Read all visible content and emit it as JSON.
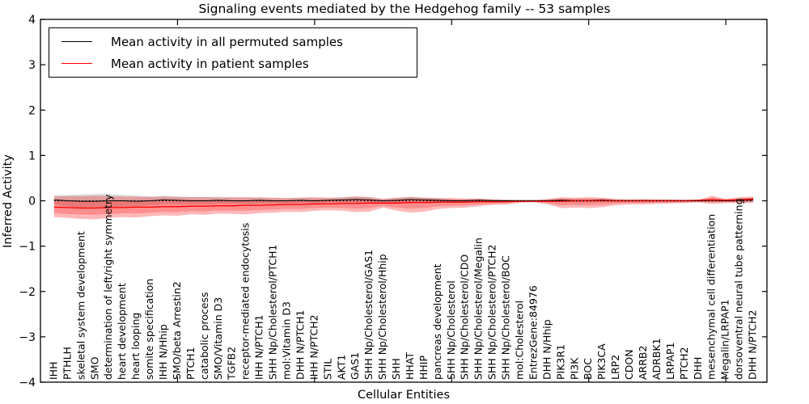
{
  "title": "Signaling events mediated by the Hedgehog family -- 53 samples",
  "legend": {
    "items": [
      {
        "label": "Mean activity in all permuted samples",
        "color": "#000000"
      },
      {
        "label": "Mean activity in patient samples",
        "color": "#ff0000"
      }
    ]
  },
  "colors": {
    "permuted_line": "#000000",
    "patient_line": "#ff0000",
    "permuted_band": "rgba(0,0,0,0.15)",
    "patient_band_outer": "rgba(255,0,0,0.28)",
    "patient_band_inner": "rgba(255,0,0,0.22)"
  },
  "chart_data": {
    "type": "line",
    "title": "Signaling events mediated by the Hedgehog family -- 53 samples",
    "xlabel": "Cellular Entities",
    "ylabel": "Inferred Activity",
    "ylim": [
      -4,
      4
    ],
    "yticks": [
      -4,
      -3,
      -2,
      -1,
      0,
      1,
      2,
      3,
      4
    ],
    "xlim": [
      0,
      53
    ],
    "xticks_numeric": [
      10,
      20,
      30,
      40,
      50
    ],
    "grid": false,
    "legend_position": "upper left",
    "zero_line": {
      "style": "dotted",
      "color": "#000000",
      "y": 0
    },
    "categories": [
      "IHH",
      "PTHLH",
      "skeletal system development",
      "SMO",
      "determination of left/right symmetry",
      "heart development",
      "heart looping",
      "somite specification",
      "IHH N/Hhip",
      "SMO/beta Arrestin2",
      "PTCH1",
      "catabolic process",
      "SMO/Vitamin D3",
      "TGFB2",
      "receptor-mediated endocytosis",
      "IHH N/PTCH1",
      "SHH Np/Cholesterol/PTCH1",
      "mol:Vitamin D3",
      "DHH N/PTCH1",
      "IHH N/PTCH2",
      "STIL",
      "AKT1",
      "GAS1",
      "SHH Np/Cholesterol/GAS1",
      "SHH Np/Cholesterol/Hhip",
      "SHH",
      "HHAT",
      "HHIP",
      "pancreas development",
      "SHH Np/Cholesterol",
      "SHH Np/Cholesterol/CDO",
      "SHH Np/Cholesterol/Megalin",
      "SHH Np/Cholesterol/PTCH2",
      "SHH Np/Cholesterol/BOC",
      "mol:Cholesterol",
      "EntrezGene:84976",
      "DHH N/Hhip",
      "PIK3R1",
      "PI3K",
      "BOC",
      "PIK3CA",
      "LRP2",
      "CDON",
      "ARRB2",
      "ADRBK1",
      "LRPAP1",
      "PTCH2",
      "DHH",
      "mesenchymal cell differentiation",
      "Megalin/LRPAP1",
      "dorsoventral neural tube patterning",
      "DHH N/PTCH2"
    ],
    "series": [
      {
        "name": "Mean activity in all permuted samples",
        "color": "#000000",
        "width": 1,
        "values": [
          0.02,
          0.0,
          -0.01,
          -0.01,
          0.0,
          0.0,
          -0.01,
          0.0,
          0.02,
          0.01,
          0.0,
          0.0,
          0.01,
          0.0,
          0.0,
          0.01,
          0.0,
          0.0,
          0.01,
          0.0,
          0.01,
          0.02,
          0.03,
          0.02,
          0.0,
          0.01,
          0.03,
          0.02,
          0.01,
          0.0,
          0.0,
          0.01,
          0.0,
          0.0,
          0.0,
          0.0,
          0.0,
          0.01,
          0.0,
          0.0,
          0.01,
          0.0,
          0.0,
          0.0,
          0.0,
          0.0,
          0.0,
          0.0,
          0.01,
          0.0,
          0.01,
          0.02
        ]
      },
      {
        "name": "Mean activity in patient samples",
        "color": "#ff0000",
        "width": 1.3,
        "values": [
          -0.14,
          -0.15,
          -0.16,
          -0.16,
          -0.15,
          -0.15,
          -0.14,
          -0.14,
          -0.13,
          -0.13,
          -0.12,
          -0.12,
          -0.11,
          -0.11,
          -0.1,
          -0.1,
          -0.09,
          -0.08,
          -0.08,
          -0.07,
          -0.07,
          -0.06,
          -0.06,
          -0.05,
          -0.05,
          -0.05,
          -0.04,
          -0.04,
          -0.03,
          -0.03,
          -0.03,
          -0.02,
          -0.02,
          -0.02,
          -0.01,
          -0.01,
          -0.01,
          -0.01,
          0.0,
          0.0,
          0.0,
          0.0,
          0.0,
          0.0,
          0.0,
          0.0,
          0.0,
          0.01,
          0.02,
          0.01,
          0.02,
          0.04
        ]
      }
    ],
    "bands": [
      {
        "name": "permuted-samples-range",
        "fill": "rgba(0,0,0,0.15)",
        "upper": [
          0.12,
          0.13,
          0.14,
          0.15,
          0.15,
          0.13,
          0.11,
          0.1,
          0.11,
          0.1,
          0.08,
          0.08,
          0.09,
          0.07,
          0.07,
          0.08,
          0.06,
          0.06,
          0.07,
          0.06,
          0.06,
          0.08,
          0.1,
          0.08,
          0.05,
          0.06,
          0.09,
          0.07,
          0.06,
          0.04,
          0.04,
          0.05,
          0.04,
          0.03,
          0.03,
          0.03,
          0.03,
          0.05,
          0.04,
          0.04,
          0.05,
          0.03,
          0.03,
          0.03,
          0.03,
          0.03,
          0.03,
          0.03,
          0.05,
          0.03,
          0.05,
          0.07
        ],
        "lower": [
          -0.08,
          -0.13,
          -0.16,
          -0.17,
          -0.15,
          -0.13,
          -0.13,
          -0.1,
          -0.07,
          -0.08,
          -0.08,
          -0.08,
          -0.07,
          -0.07,
          -0.07,
          -0.06,
          -0.06,
          -0.06,
          -0.05,
          -0.06,
          -0.04,
          -0.04,
          -0.04,
          -0.04,
          -0.05,
          -0.04,
          -0.03,
          -0.03,
          -0.04,
          -0.04,
          -0.04,
          -0.03,
          -0.04,
          -0.03,
          -0.03,
          -0.03,
          -0.03,
          -0.03,
          -0.04,
          -0.04,
          -0.03,
          -0.03,
          -0.03,
          -0.03,
          -0.03,
          -0.03,
          -0.03,
          -0.03,
          -0.03,
          -0.03,
          -0.03,
          -0.03
        ]
      },
      {
        "name": "patient-samples-range",
        "fill": "rgba(255,0,0,0.28)",
        "inner_fill": "rgba(255,0,0,0.22)",
        "inner_scale": 0.6,
        "center_series": 1,
        "upper": [
          0.09,
          0.1,
          0.1,
          0.11,
          0.1,
          0.09,
          0.09,
          0.08,
          0.09,
          0.08,
          0.08,
          0.08,
          0.07,
          0.08,
          0.08,
          0.07,
          0.07,
          0.06,
          0.07,
          0.08,
          0.07,
          0.07,
          0.09,
          0.08,
          0.04,
          0.07,
          0.08,
          0.07,
          0.06,
          0.06,
          0.05,
          0.05,
          0.03,
          0.02,
          0.01,
          0.01,
          0.04,
          0.08,
          0.07,
          0.08,
          0.07,
          0.04,
          0.03,
          0.04,
          0.03,
          0.03,
          0.02,
          0.02,
          0.11,
          0.04,
          0.08,
          0.09
        ],
        "lower": [
          -0.36,
          -0.38,
          -0.4,
          -0.41,
          -0.38,
          -0.36,
          -0.37,
          -0.34,
          -0.32,
          -0.33,
          -0.3,
          -0.31,
          -0.28,
          -0.29,
          -0.3,
          -0.27,
          -0.26,
          -0.24,
          -0.25,
          -0.22,
          -0.21,
          -0.22,
          -0.25,
          -0.24,
          -0.15,
          -0.22,
          -0.26,
          -0.24,
          -0.18,
          -0.16,
          -0.15,
          -0.12,
          -0.09,
          -0.08,
          -0.04,
          -0.03,
          -0.08,
          -0.16,
          -0.15,
          -0.16,
          -0.14,
          -0.1,
          -0.08,
          -0.08,
          -0.07,
          -0.06,
          -0.05,
          -0.04,
          -0.07,
          -0.05,
          -0.05,
          -0.05
        ]
      }
    ]
  }
}
